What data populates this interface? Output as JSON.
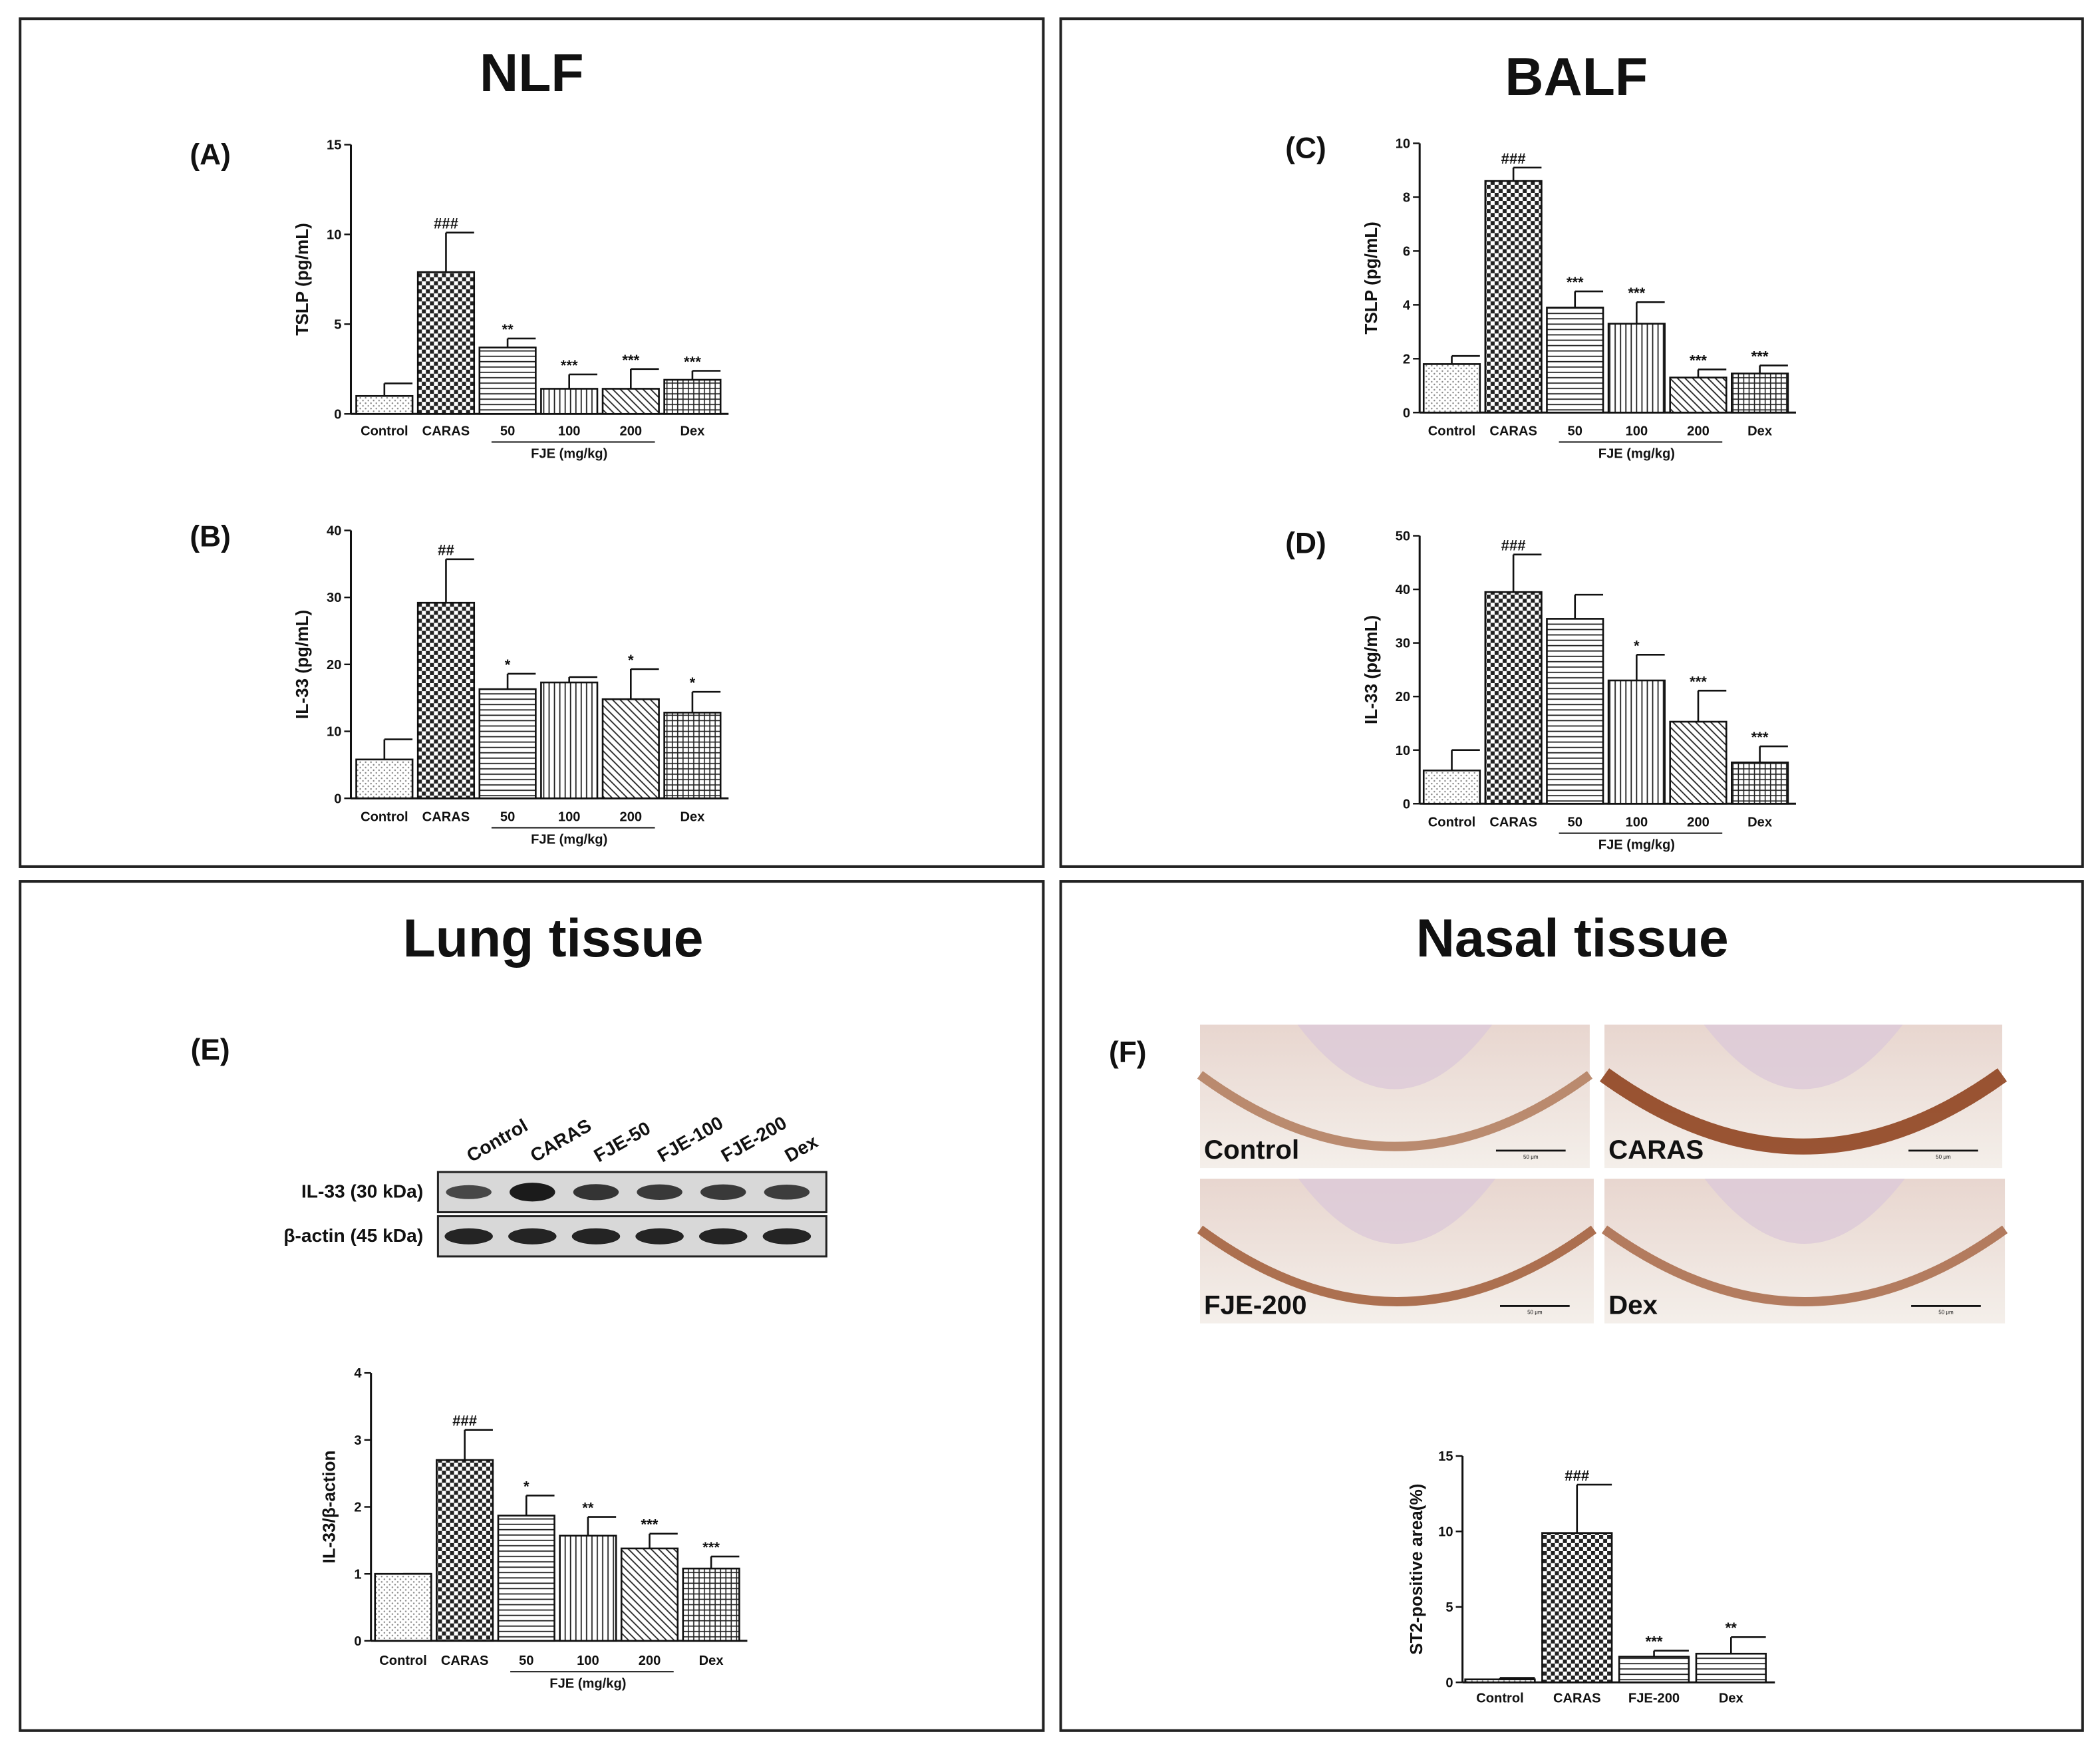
{
  "panels": [
    {
      "title": "NLF"
    },
    {
      "title": "BALF"
    },
    {
      "title": "Lung tissue"
    },
    {
      "title": "Nasal tissue"
    }
  ],
  "chart_data": [
    {
      "type": "bar",
      "panel_label": "(A)",
      "ylabel": "TSLP (pg/mL)",
      "categories": [
        "Control",
        "CARAS",
        "50",
        "100",
        "200",
        "Dex"
      ],
      "group_label": "FJE (mg/kg)",
      "values": [
        1.0,
        7.9,
        3.7,
        1.4,
        1.4,
        1.9
      ],
      "errors": [
        0.7,
        2.2,
        0.5,
        0.8,
        1.1,
        0.5
      ],
      "annotations": [
        null,
        "###",
        "**",
        "***",
        "***",
        "***"
      ],
      "ylim": [
        0,
        15
      ],
      "yticks": [
        0,
        5,
        10,
        15
      ]
    },
    {
      "type": "bar",
      "panel_label": "(B)",
      "ylabel": "IL-33 (pg/mL)",
      "categories": [
        "Control",
        "CARAS",
        "50",
        "100",
        "200",
        "Dex"
      ],
      "group_label": "FJE (mg/kg)",
      "values": [
        5.8,
        29.2,
        16.3,
        17.3,
        14.8,
        12.8
      ],
      "errors": [
        3.0,
        6.5,
        2.3,
        0.8,
        4.5,
        3.1
      ],
      "annotations": [
        null,
        "##",
        "*",
        null,
        "*",
        "*"
      ],
      "ylim": [
        0,
        40
      ],
      "yticks": [
        0,
        10,
        20,
        30,
        40
      ]
    },
    {
      "type": "bar",
      "panel_label": "(C)",
      "ylabel": "TSLP (pg/mL)",
      "categories": [
        "Control",
        "CARAS",
        "50",
        "100",
        "200",
        "Dex"
      ],
      "group_label": "FJE (mg/kg)",
      "values": [
        1.8,
        8.6,
        3.9,
        3.3,
        1.3,
        1.45
      ],
      "errors": [
        0.3,
        0.5,
        0.6,
        0.8,
        0.3,
        0.3
      ],
      "annotations": [
        null,
        "###",
        "***",
        "***",
        "***",
        "***"
      ],
      "ylim": [
        0,
        10
      ],
      "yticks": [
        0,
        2,
        4,
        6,
        8,
        10
      ]
    },
    {
      "type": "bar",
      "panel_label": "(D)",
      "ylabel": "IL-33 (pg/mL)",
      "categories": [
        "Control",
        "CARAS",
        "50",
        "100",
        "200",
        "Dex"
      ],
      "group_label": "FJE (mg/kg)",
      "values": [
        6.2,
        39.5,
        34.5,
        23.0,
        15.3,
        7.7
      ],
      "errors": [
        3.8,
        7.0,
        4.5,
        4.8,
        5.8,
        3.0
      ],
      "annotations": [
        null,
        "###",
        null,
        "*",
        "***",
        "***"
      ],
      "ylim": [
        0,
        50
      ],
      "yticks": [
        0,
        10,
        20,
        30,
        40,
        50
      ]
    },
    {
      "type": "bar",
      "ylabel": "IL-33/β-action",
      "categories": [
        "Control",
        "CARAS",
        "50",
        "100",
        "200",
        "Dex"
      ],
      "group_label": "FJE (mg/kg)",
      "values": [
        1.0,
        2.7,
        1.87,
        1.57,
        1.38,
        1.08
      ],
      "errors": [
        0.0,
        0.45,
        0.3,
        0.28,
        0.22,
        0.18
      ],
      "annotations": [
        null,
        "###",
        "*",
        "**",
        "***",
        "***"
      ],
      "ylim": [
        0,
        4
      ],
      "yticks": [
        0,
        1,
        2,
        3,
        4
      ]
    },
    {
      "type": "bar",
      "ylabel": "ST2-positive area(%)",
      "categories": [
        "Control",
        "CARAS",
        "FJE-200",
        "Dex"
      ],
      "values": [
        0.2,
        9.9,
        1.7,
        1.9
      ],
      "errors": [
        0.1,
        3.2,
        0.4,
        1.1
      ],
      "annotations": [
        null,
        "###",
        "***",
        "**"
      ],
      "ylim": [
        0,
        15
      ],
      "yticks": [
        0,
        5,
        10,
        15
      ]
    }
  ],
  "blot": {
    "panel_label": "(E)",
    "lanes": [
      "Control",
      "CARAS",
      "FJE-50",
      "FJE-100",
      "FJE-200",
      "Dex"
    ],
    "rows": [
      "IL-33 (30 kDa)",
      "β-actin (45 kDa)"
    ]
  },
  "histology": {
    "panel_label": "(F)",
    "images": [
      {
        "label": "Control"
      },
      {
        "label": "CARAS"
      },
      {
        "label": "FJE-200"
      },
      {
        "label": "Dex"
      }
    ],
    "scale_label": "50 μm"
  }
}
